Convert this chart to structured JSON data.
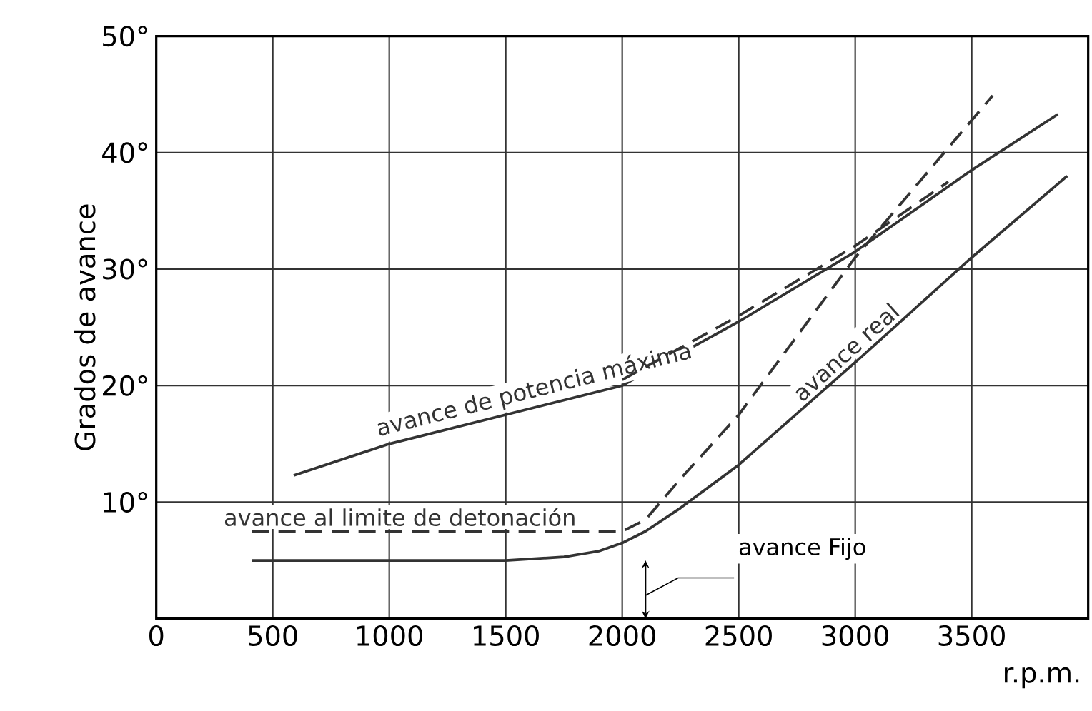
{
  "chart_data": {
    "type": "line",
    "xlabel": "r.p.m.",
    "ylabel": "Grados de avance",
    "xlim": [
      0,
      4000
    ],
    "ylim": [
      0,
      50
    ],
    "xticks": [
      0,
      500,
      1000,
      1500,
      2000,
      2500,
      3000,
      3500
    ],
    "yticks": [
      {
        "value": 10,
        "label": "10°"
      },
      {
        "value": 20,
        "label": "20°"
      },
      {
        "value": 30,
        "label": "30°"
      },
      {
        "value": 40,
        "label": "40°"
      },
      {
        "value": 50,
        "label": "50°"
      }
    ],
    "grid": true,
    "marker": "none",
    "series": [
      {
        "name": "avance de potencia máxima",
        "color": "#333333",
        "line_style": "solid",
        "x": [
          590,
          1000,
          1500,
          2000,
          2500,
          3000,
          3500,
          3870
        ],
        "values": [
          12.3,
          15,
          17.5,
          20,
          25.5,
          31.5,
          38.5,
          43.3
        ]
      },
      {
        "color": "#333333",
        "line_style": "dashed",
        "x": [
          2000,
          2500,
          3000,
          3400
        ],
        "values": [
          20.5,
          26,
          32,
          37.5
        ]
      },
      {
        "name": "avance al limite de detonación",
        "color": "#333333",
        "line_style": "dashed",
        "x": [
          410,
          1000,
          1500,
          2000,
          2100,
          2250,
          2500,
          3000,
          3590
        ],
        "values": [
          7.5,
          7.5,
          7.5,
          7.5,
          8.5,
          12,
          17.5,
          31,
          44.9
        ]
      },
      {
        "name": "avance real",
        "color": "#333333",
        "line_style": "solid",
        "x": [
          410,
          1000,
          1500,
          1750,
          1900,
          2000,
          2100,
          2250,
          2500,
          3000,
          3500,
          3910
        ],
        "values": [
          5,
          5,
          5,
          5.3,
          5.8,
          6.5,
          7.5,
          9.5,
          13.2,
          22,
          31,
          38
        ]
      }
    ],
    "annotations": [
      "avance Fijo"
    ]
  }
}
